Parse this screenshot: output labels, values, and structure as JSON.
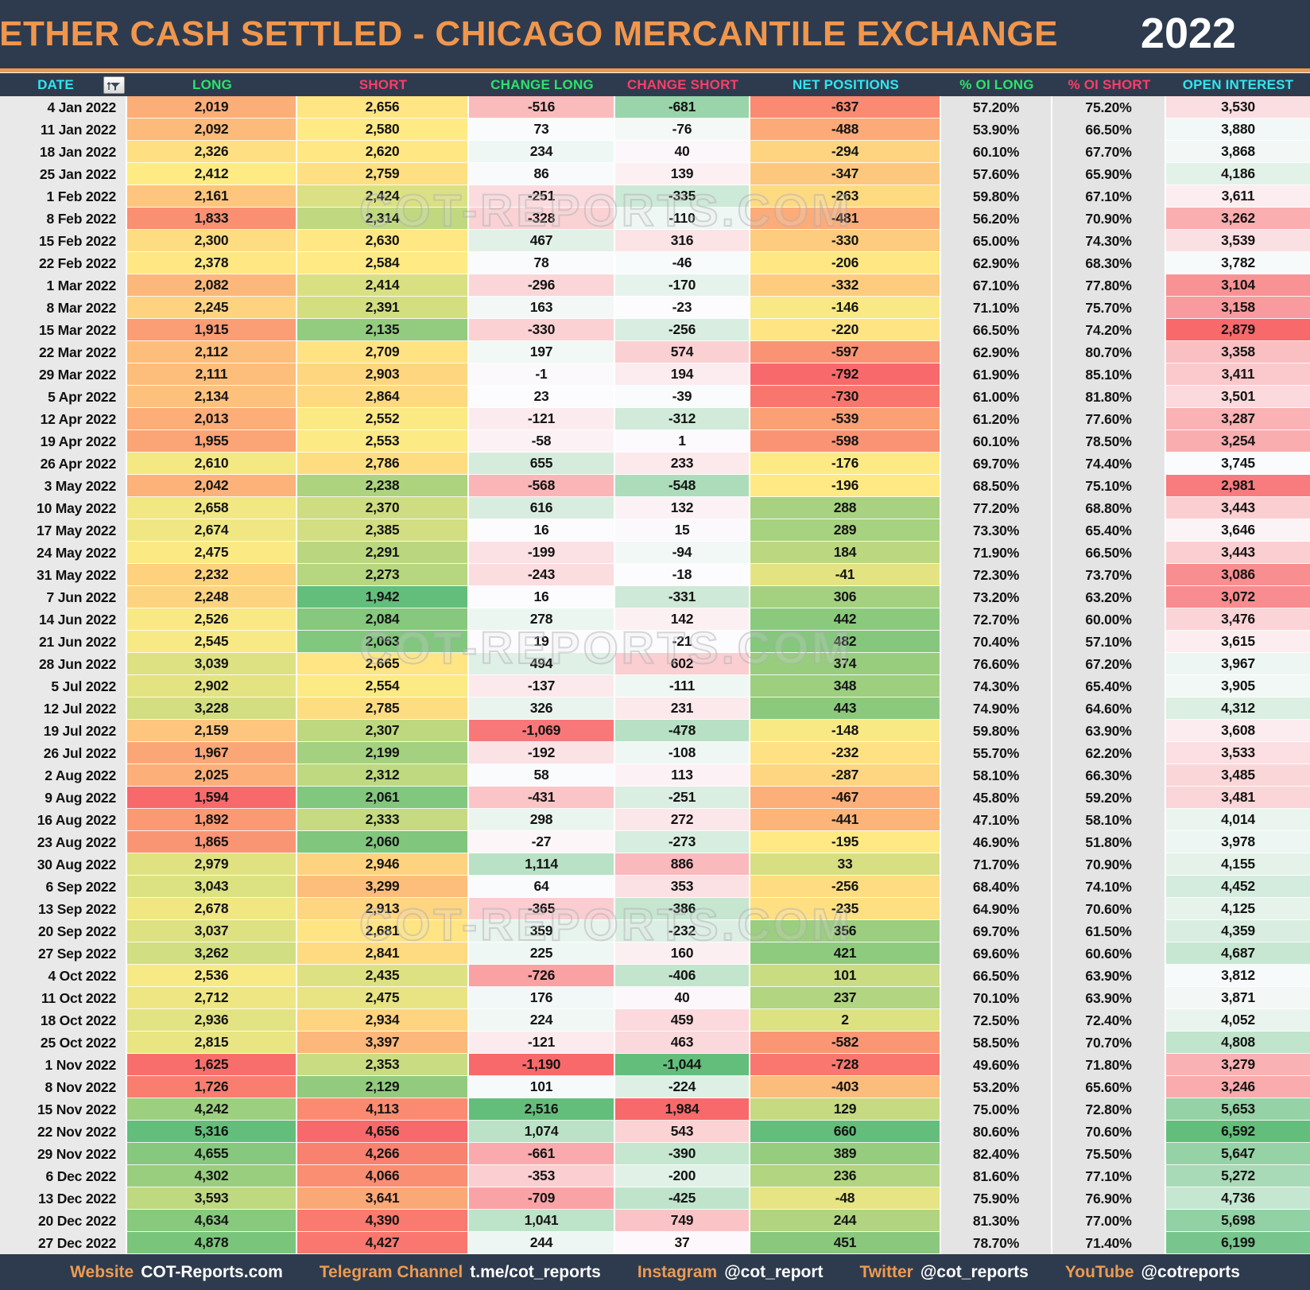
{
  "header": {
    "title": "ETHER CASH SETTLED - CHICAGO MERCANTILE EXCHANGE",
    "year": "2022"
  },
  "watermark": "COT-REPORTS.COM",
  "filter_icon": "filter-sort-icon",
  "colors": {
    "background_navy": "#2E3B4E",
    "title_orange": "#F0964D",
    "rule_orange": "#ED9B51",
    "header_cyan": "#2FE6F2",
    "header_green": "#2BE36E",
    "header_pink": "#FB3D68",
    "scale_red": "#F8696B",
    "scale_yellow": "#FFEB84",
    "scale_green": "#63BE7B",
    "scale_white": "#FCFCFF",
    "date_gray": "#E9E9E9",
    "pct_gray": "#E5E4E4",
    "cell_text": "#141414"
  },
  "columns": [
    {
      "label": "DATE",
      "color": "#2FE6F2",
      "scale": "none"
    },
    {
      "label": "LONG",
      "color": "#2BE36E",
      "scale": "ryg",
      "reverse": false
    },
    {
      "label": "SHORT",
      "color": "#FB3D68",
      "scale": "ryg",
      "reverse": true
    },
    {
      "label": "CHANGE LONG",
      "color": "#2BE36E",
      "scale": "rwg",
      "reverse": false
    },
    {
      "label": "CHANGE SHORT",
      "color": "#FB3D68",
      "scale": "rwg",
      "reverse": true
    },
    {
      "label": "NET POSITIONS",
      "color": "#2FE6F2",
      "scale": "ryg",
      "reverse": false
    },
    {
      "label": "% OI LONG",
      "color": "#2BE36E",
      "scale": "gray"
    },
    {
      "label": "% OI SHORT",
      "color": "#FB3D68",
      "scale": "gray"
    },
    {
      "label": "OPEN INTEREST",
      "color": "#2FE6F2",
      "scale": "rwg",
      "reverse": false
    }
  ],
  "chart_data": {
    "type": "table",
    "title": "ETHER CASH SETTLED - CHICAGO MERCANTILE EXCHANGE 2022",
    "columns": [
      "DATE",
      "LONG",
      "SHORT",
      "CHANGE LONG",
      "CHANGE SHORT",
      "NET POSITIONS",
      "% OI LONG",
      "% OI SHORT",
      "OPEN INTEREST"
    ],
    "rows": [
      [
        "4 Jan 2022",
        "2,019",
        "2,656",
        "-516",
        "-681",
        "-637",
        "57.20%",
        "75.20%",
        "3,530"
      ],
      [
        "11 Jan 2022",
        "2,092",
        "2,580",
        "73",
        "-76",
        "-488",
        "53.90%",
        "66.50%",
        "3,880"
      ],
      [
        "18 Jan 2022",
        "2,326",
        "2,620",
        "234",
        "40",
        "-294",
        "60.10%",
        "67.70%",
        "3,868"
      ],
      [
        "25 Jan 2022",
        "2,412",
        "2,759",
        "86",
        "139",
        "-347",
        "57.60%",
        "65.90%",
        "4,186"
      ],
      [
        "1 Feb 2022",
        "2,161",
        "2,424",
        "-251",
        "-335",
        "-263",
        "59.80%",
        "67.10%",
        "3,611"
      ],
      [
        "8 Feb 2022",
        "1,833",
        "2,314",
        "-328",
        "-110",
        "-481",
        "56.20%",
        "70.90%",
        "3,262"
      ],
      [
        "15 Feb 2022",
        "2,300",
        "2,630",
        "467",
        "316",
        "-330",
        "65.00%",
        "74.30%",
        "3,539"
      ],
      [
        "22 Feb 2022",
        "2,378",
        "2,584",
        "78",
        "-46",
        "-206",
        "62.90%",
        "68.30%",
        "3,782"
      ],
      [
        "1 Mar 2022",
        "2,082",
        "2,414",
        "-296",
        "-170",
        "-332",
        "67.10%",
        "77.80%",
        "3,104"
      ],
      [
        "8 Mar 2022",
        "2,245",
        "2,391",
        "163",
        "-23",
        "-146",
        "71.10%",
        "75.70%",
        "3,158"
      ],
      [
        "15 Mar 2022",
        "1,915",
        "2,135",
        "-330",
        "-256",
        "-220",
        "66.50%",
        "74.20%",
        "2,879"
      ],
      [
        "22 Mar 2022",
        "2,112",
        "2,709",
        "197",
        "574",
        "-597",
        "62.90%",
        "80.70%",
        "3,358"
      ],
      [
        "29 Mar 2022",
        "2,111",
        "2,903",
        "-1",
        "194",
        "-792",
        "61.90%",
        "85.10%",
        "3,411"
      ],
      [
        "5 Apr 2022",
        "2,134",
        "2,864",
        "23",
        "-39",
        "-730",
        "61.00%",
        "81.80%",
        "3,501"
      ],
      [
        "12 Apr 2022",
        "2,013",
        "2,552",
        "-121",
        "-312",
        "-539",
        "61.20%",
        "77.60%",
        "3,287"
      ],
      [
        "19 Apr 2022",
        "1,955",
        "2,553",
        "-58",
        "1",
        "-598",
        "60.10%",
        "78.50%",
        "3,254"
      ],
      [
        "26 Apr 2022",
        "2,610",
        "2,786",
        "655",
        "233",
        "-176",
        "69.70%",
        "74.40%",
        "3,745"
      ],
      [
        "3 May 2022",
        "2,042",
        "2,238",
        "-568",
        "-548",
        "-196",
        "68.50%",
        "75.10%",
        "2,981"
      ],
      [
        "10 May 2022",
        "2,658",
        "2,370",
        "616",
        "132",
        "288",
        "77.20%",
        "68.80%",
        "3,443"
      ],
      [
        "17 May 2022",
        "2,674",
        "2,385",
        "16",
        "15",
        "289",
        "73.30%",
        "65.40%",
        "3,646"
      ],
      [
        "24 May 2022",
        "2,475",
        "2,291",
        "-199",
        "-94",
        "184",
        "71.90%",
        "66.50%",
        "3,443"
      ],
      [
        "31 May 2022",
        "2,232",
        "2,273",
        "-243",
        "-18",
        "-41",
        "72.30%",
        "73.70%",
        "3,086"
      ],
      [
        "7 Jun 2022",
        "2,248",
        "1,942",
        "16",
        "-331",
        "306",
        "73.20%",
        "63.20%",
        "3,072"
      ],
      [
        "14 Jun 2022",
        "2,526",
        "2,084",
        "278",
        "142",
        "442",
        "72.70%",
        "60.00%",
        "3,476"
      ],
      [
        "21 Jun 2022",
        "2,545",
        "2,063",
        "19",
        "-21",
        "482",
        "70.40%",
        "57.10%",
        "3,615"
      ],
      [
        "28 Jun 2022",
        "3,039",
        "2,665",
        "494",
        "602",
        "374",
        "76.60%",
        "67.20%",
        "3,967"
      ],
      [
        "5 Jul 2022",
        "2,902",
        "2,554",
        "-137",
        "-111",
        "348",
        "74.30%",
        "65.40%",
        "3,905"
      ],
      [
        "12 Jul 2022",
        "3,228",
        "2,785",
        "326",
        "231",
        "443",
        "74.90%",
        "64.60%",
        "4,312"
      ],
      [
        "19 Jul 2022",
        "2,159",
        "2,307",
        "-1,069",
        "-478",
        "-148",
        "59.80%",
        "63.90%",
        "3,608"
      ],
      [
        "26 Jul 2022",
        "1,967",
        "2,199",
        "-192",
        "-108",
        "-232",
        "55.70%",
        "62.20%",
        "3,533"
      ],
      [
        "2 Aug 2022",
        "2,025",
        "2,312",
        "58",
        "113",
        "-287",
        "58.10%",
        "66.30%",
        "3,485"
      ],
      [
        "9 Aug 2022",
        "1,594",
        "2,061",
        "-431",
        "-251",
        "-467",
        "45.80%",
        "59.20%",
        "3,481"
      ],
      [
        "16 Aug 2022",
        "1,892",
        "2,333",
        "298",
        "272",
        "-441",
        "47.10%",
        "58.10%",
        "4,014"
      ],
      [
        "23 Aug 2022",
        "1,865",
        "2,060",
        "-27",
        "-273",
        "-195",
        "46.90%",
        "51.80%",
        "3,978"
      ],
      [
        "30 Aug 2022",
        "2,979",
        "2,946",
        "1,114",
        "886",
        "33",
        "71.70%",
        "70.90%",
        "4,155"
      ],
      [
        "6 Sep 2022",
        "3,043",
        "3,299",
        "64",
        "353",
        "-256",
        "68.40%",
        "74.10%",
        "4,452"
      ],
      [
        "13 Sep 2022",
        "2,678",
        "2,913",
        "-365",
        "-386",
        "-235",
        "64.90%",
        "70.60%",
        "4,125"
      ],
      [
        "20 Sep 2022",
        "3,037",
        "2,681",
        "359",
        "-232",
        "356",
        "69.70%",
        "61.50%",
        "4,359"
      ],
      [
        "27 Sep 2022",
        "3,262",
        "2,841",
        "225",
        "160",
        "421",
        "69.60%",
        "60.60%",
        "4,687"
      ],
      [
        "4 Oct 2022",
        "2,536",
        "2,435",
        "-726",
        "-406",
        "101",
        "66.50%",
        "63.90%",
        "3,812"
      ],
      [
        "11 Oct 2022",
        "2,712",
        "2,475",
        "176",
        "40",
        "237",
        "70.10%",
        "63.90%",
        "3,871"
      ],
      [
        "18 Oct 2022",
        "2,936",
        "2,934",
        "224",
        "459",
        "2",
        "72.50%",
        "72.40%",
        "4,052"
      ],
      [
        "25 Oct 2022",
        "2,815",
        "3,397",
        "-121",
        "463",
        "-582",
        "58.50%",
        "70.70%",
        "4,808"
      ],
      [
        "1 Nov 2022",
        "1,625",
        "2,353",
        "-1,190",
        "-1,044",
        "-728",
        "49.60%",
        "71.80%",
        "3,279"
      ],
      [
        "8 Nov 2022",
        "1,726",
        "2,129",
        "101",
        "-224",
        "-403",
        "53.20%",
        "65.60%",
        "3,246"
      ],
      [
        "15 Nov 2022",
        "4,242",
        "4,113",
        "2,516",
        "1,984",
        "129",
        "75.00%",
        "72.80%",
        "5,653"
      ],
      [
        "22 Nov 2022",
        "5,316",
        "4,656",
        "1,074",
        "543",
        "660",
        "80.60%",
        "70.60%",
        "6,592"
      ],
      [
        "29 Nov 2022",
        "4,655",
        "4,266",
        "-661",
        "-390",
        "389",
        "82.40%",
        "75.50%",
        "5,647"
      ],
      [
        "6 Dec 2022",
        "4,302",
        "4,066",
        "-353",
        "-200",
        "236",
        "81.60%",
        "77.10%",
        "5,272"
      ],
      [
        "13 Dec 2022",
        "3,593",
        "3,641",
        "-709",
        "-425",
        "-48",
        "75.90%",
        "76.90%",
        "4,736"
      ],
      [
        "20 Dec 2022",
        "4,634",
        "4,390",
        "1,041",
        "749",
        "244",
        "81.30%",
        "77.00%",
        "5,698"
      ],
      [
        "27 Dec 2022",
        "4,878",
        "4,427",
        "244",
        "37",
        "451",
        "78.70%",
        "71.40%",
        "6,199"
      ]
    ]
  },
  "footer": {
    "items": [
      {
        "label": "Website",
        "value": "COT-Reports.com"
      },
      {
        "label": "Telegram Channel",
        "value": "t.me/cot_reports"
      },
      {
        "label": "Instagram",
        "value": "@cot_report"
      },
      {
        "label": "Twitter",
        "value": "@cot_reports"
      },
      {
        "label": "YouTube",
        "value": "@cotreports"
      }
    ]
  }
}
